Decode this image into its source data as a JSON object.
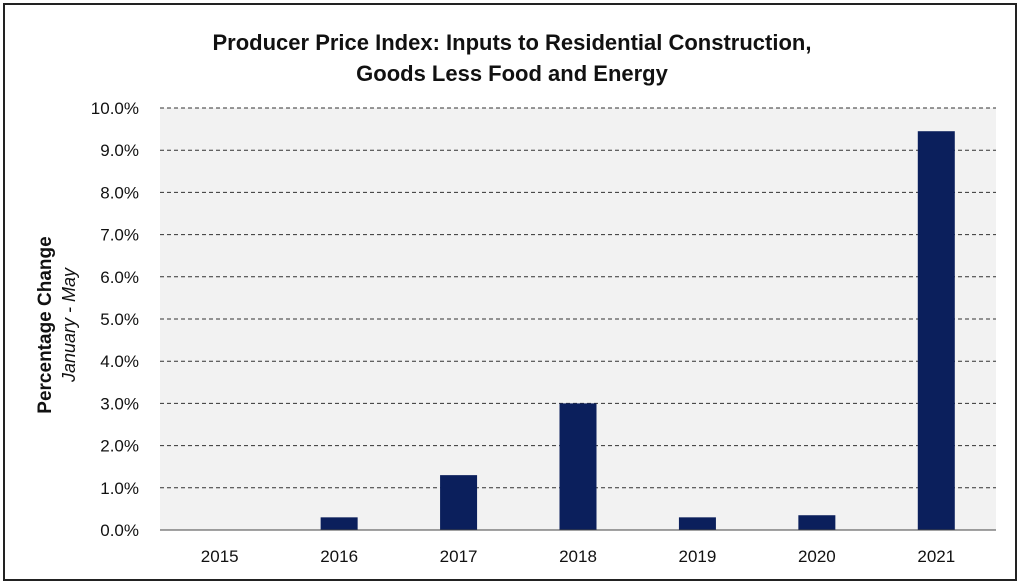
{
  "chart_data": {
    "type": "bar",
    "title_lines": [
      "Producer Price Index: Inputs to Residential Construction,",
      "Goods Less Food and Energy"
    ],
    "ylabel": "Percentage Change",
    "ylabel_sub": "January - May",
    "categories": [
      "2015",
      "2016",
      "2017",
      "2018",
      "2019",
      "2020",
      "2021"
    ],
    "values": [
      0.0,
      0.3,
      1.3,
      3.0,
      0.3,
      0.35,
      9.45
    ],
    "ylim": [
      0,
      10
    ],
    "ytick_labels": [
      "0.0%",
      "1.0%",
      "2.0%",
      "3.0%",
      "4.0%",
      "5.0%",
      "6.0%",
      "7.0%",
      "8.0%",
      "9.0%",
      "10.0%"
    ],
    "bar_color": "#0b1f5c",
    "plot_background": "#f2f2f2",
    "grid": "dashed horizontal",
    "legend": "none"
  }
}
